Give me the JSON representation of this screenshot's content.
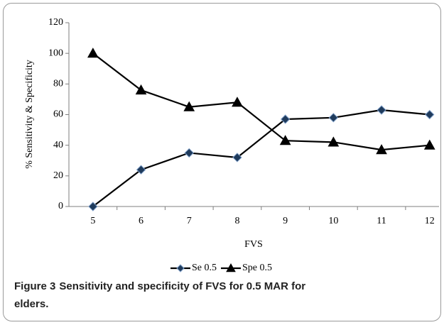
{
  "chart_data": {
    "type": "line",
    "categories": [
      "5",
      "6",
      "7",
      "8",
      "9",
      "10",
      "11",
      "12"
    ],
    "series": [
      {
        "name": "Se 0.5",
        "color": "#1f3b5c",
        "marker": "diamond",
        "values": [
          0,
          24,
          35,
          32,
          57,
          58,
          63,
          60
        ]
      },
      {
        "name": "Spe 0.5",
        "color": "#000000",
        "marker": "triangle",
        "values": [
          100,
          76,
          65,
          68,
          43,
          42,
          37,
          40
        ]
      }
    ],
    "xlabel": "FVS",
    "ylabel": "% Sensitivity & Specificity",
    "ylim": [
      0,
      120
    ],
    "yticks": [
      0,
      20,
      40,
      60,
      80,
      100,
      120
    ],
    "grid": false,
    "legend": "bottom"
  },
  "caption": {
    "label": "Figure 3",
    "text": "Sensitivity and specificity of FVS for 0.5 MAR for",
    "text2": "elders."
  }
}
